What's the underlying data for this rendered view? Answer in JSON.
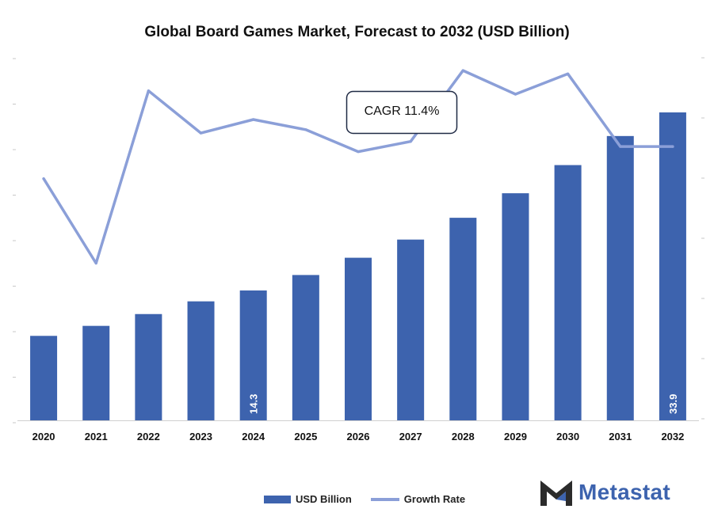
{
  "chart_data": {
    "type": "bar+line",
    "title": "Global Board Games Market, Forecast to 2032 (USD Billion)",
    "categories": [
      "2020",
      "2021",
      "2022",
      "2023",
      "2024",
      "2025",
      "2026",
      "2027",
      "2028",
      "2029",
      "2030",
      "2031",
      "2032"
    ],
    "series": [
      {
        "name": "USD Billion",
        "type": "bar",
        "color": "#3d63ae",
        "values": [
          9.3,
          10.4,
          11.7,
          13.1,
          14.3,
          16.0,
          17.9,
          19.9,
          22.3,
          25.0,
          28.1,
          31.3,
          33.9
        ]
      },
      {
        "name": "Growth Rate",
        "type": "line",
        "color": "#8b9fd8",
        "values": [
          10.3,
          5.3,
          15.5,
          13.0,
          13.8,
          13.2,
          11.9,
          12.5,
          16.7,
          15.3,
          16.5,
          12.2,
          12.2
        ]
      }
    ],
    "data_labels": [
      {
        "index": 4,
        "text": "14.3"
      },
      {
        "index": 12,
        "text": "33.9"
      }
    ],
    "annotation": "CAGR 11.4%",
    "ylim_bars": [
      0,
      40
    ],
    "ylim_line": [
      -4,
      17.5
    ],
    "grid": false,
    "legend_position": "bottom"
  },
  "legend": {
    "bar_label": "USD Billion",
    "line_label": "Growth Rate"
  },
  "brand": {
    "name": "Metastat",
    "accent": "#3d63ae"
  }
}
